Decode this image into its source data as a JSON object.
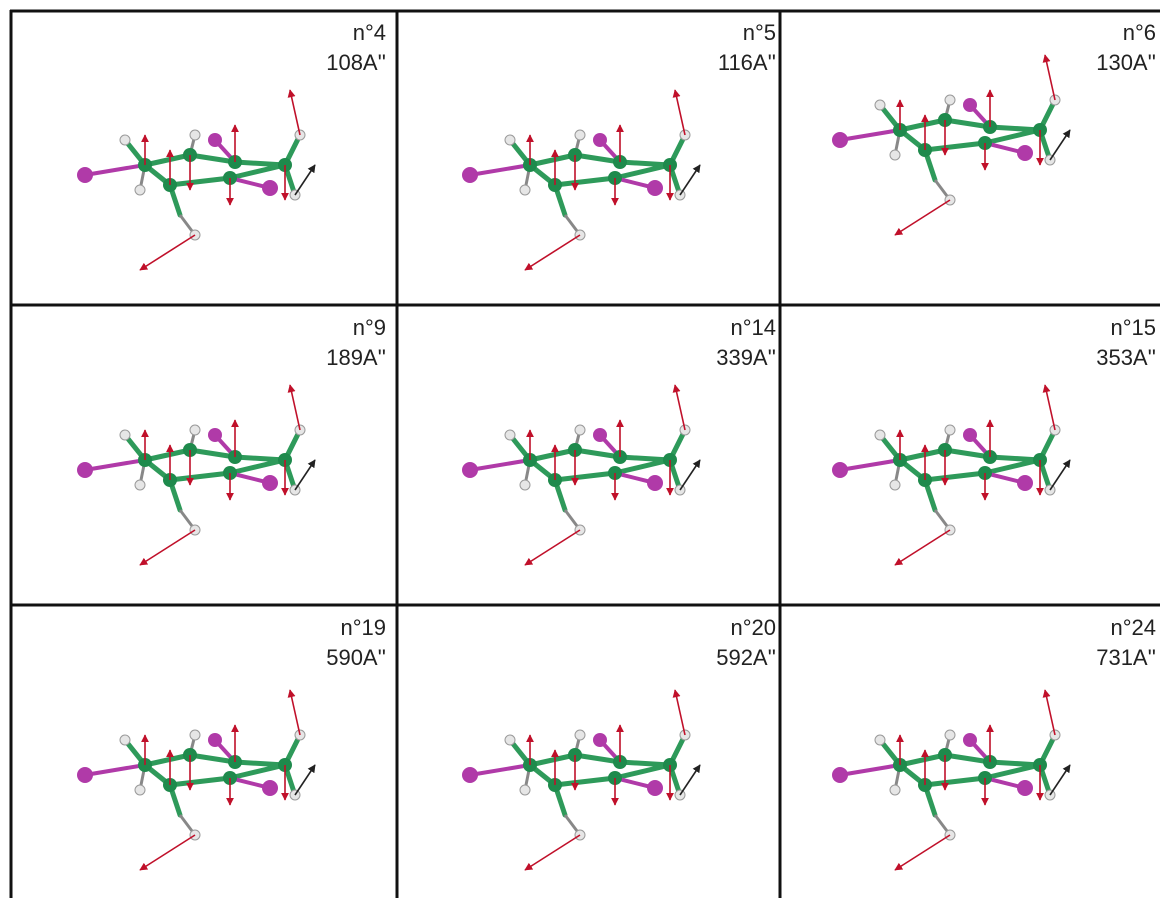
{
  "panels": [
    {
      "mode": "n°4",
      "frequency": "108A''"
    },
    {
      "mode": "n°5",
      "frequency": "116A''"
    },
    {
      "mode": "n°6",
      "frequency": "130A''"
    },
    {
      "mode": "n°9",
      "frequency": "189A''"
    },
    {
      "mode": "n°14",
      "frequency": "339A''"
    },
    {
      "mode": "n°15",
      "frequency": "353A''"
    },
    {
      "mode": "n°19",
      "frequency": "590A''"
    },
    {
      "mode": "n°20",
      "frequency": "592A''"
    },
    {
      "mode": "n°24",
      "frequency": "731A''"
    }
  ]
}
